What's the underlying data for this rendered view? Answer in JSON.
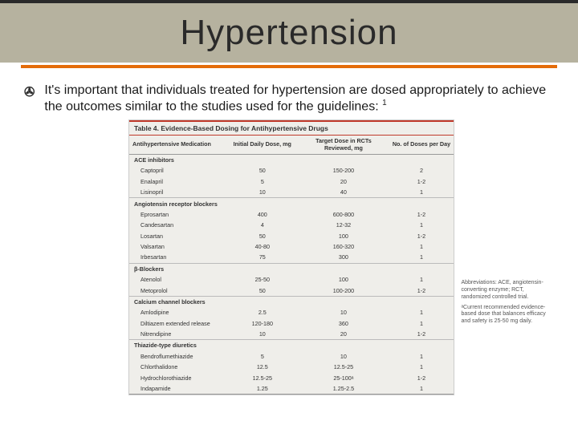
{
  "title": "Hypertension",
  "bullet": {
    "glyph": "✇",
    "text_a": "It's important that individuals treated for hypertension are dosed appropriately to achieve the outcomes similar to the studies used for the guidelines: ",
    "sup": "1"
  },
  "table": {
    "caption": "Table 4. Evidence-Based Dosing for Antihypertensive Drugs",
    "columns": [
      "Antihypertensive Medication",
      "Initial Daily Dose, mg",
      "Target Dose in RCTs Reviewed, mg",
      "No. of Doses per Day"
    ],
    "groups": [
      {
        "name": "ACE inhibitors",
        "rows": [
          [
            "Captopril",
            "50",
            "150-200",
            "2"
          ],
          [
            "Enalapril",
            "5",
            "20",
            "1-2"
          ],
          [
            "Lisinopril",
            "10",
            "40",
            "1"
          ]
        ]
      },
      {
        "name": "Angiotensin receptor blockers",
        "rows": [
          [
            "Eprosartan",
            "400",
            "600-800",
            "1-2"
          ],
          [
            "Candesartan",
            "4",
            "12-32",
            "1"
          ],
          [
            "Losartan",
            "50",
            "100",
            "1-2"
          ],
          [
            "Valsartan",
            "40-80",
            "160-320",
            "1"
          ],
          [
            "Irbesartan",
            "75",
            "300",
            "1"
          ]
        ]
      },
      {
        "name": "β-Blockers",
        "rows": [
          [
            "Atenolol",
            "25-50",
            "100",
            "1"
          ],
          [
            "Metoprolol",
            "50",
            "100-200",
            "1-2"
          ]
        ]
      },
      {
        "name": "Calcium channel blockers",
        "rows": [
          [
            "Amlodipine",
            "2.5",
            "10",
            "1"
          ],
          [
            "Diltiazem extended release",
            "120-180",
            "360",
            "1"
          ],
          [
            "Nitrendipine",
            "10",
            "20",
            "1-2"
          ]
        ]
      },
      {
        "name": "Thiazide-type diuretics",
        "rows": [
          [
            "Bendroflumethiazide",
            "5",
            "10",
            "1"
          ],
          [
            "Chlorthalidone",
            "12.5",
            "12.5-25",
            "1"
          ],
          [
            "Hydrochlorothiazide",
            "12.5-25",
            "25-100ᵃ",
            "1-2"
          ],
          [
            "Indapamide",
            "1.25",
            "1.25-2.5",
            "1"
          ]
        ]
      }
    ]
  },
  "footnote": {
    "line1": "Abbreviations: ACE, angiotensin-converting enzyme; RCT, randomized controlled trial.",
    "line2": "ᵃCurrent recommended evidence-based dose that balances efficacy and safety is 25-50 mg daily."
  }
}
